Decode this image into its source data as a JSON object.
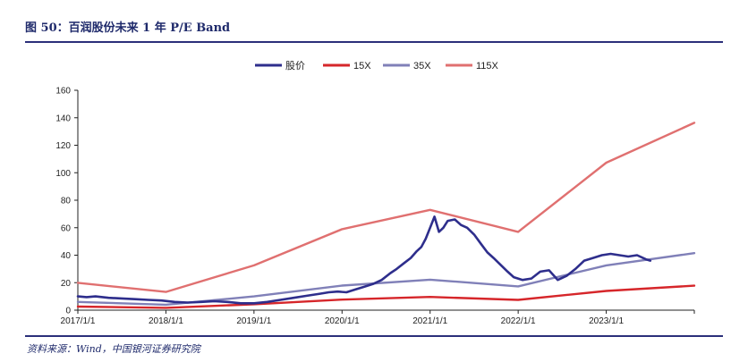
{
  "header": {
    "title": "图 50：百润股份未来 1 年 P/E Band"
  },
  "footer": {
    "source": "资料来源：Wind，中国银河证券研究院"
  },
  "chart_data": {
    "type": "line",
    "title": "图 50：百润股份未来 1 年 P/E Band",
    "xlabel": "",
    "ylabel": "",
    "ylim": [
      0,
      160
    ],
    "yticks": [
      0,
      20,
      40,
      60,
      80,
      100,
      120,
      140,
      160
    ],
    "xlim": [
      2017.0,
      2024.0
    ],
    "xtick_positions": [
      2017.0,
      2018.0,
      2019.0,
      2020.0,
      2021.0,
      2022.0,
      2023.0
    ],
    "xtick_labels": [
      "2017/1/1",
      "2018/1/1",
      "2019/1/1",
      "2020/1/1",
      "2021/1/1",
      "2022/1/1",
      "2023/1/1"
    ],
    "legend_position": "top-center",
    "series": [
      {
        "name": "股价",
        "color": "#2e2e8c",
        "x": [
          2017.0,
          2017.1,
          2017.2,
          2017.35,
          2017.5,
          2017.65,
          2017.8,
          2017.95,
          2018.1,
          2018.25,
          2018.4,
          2018.55,
          2018.7,
          2018.85,
          2019.0,
          2019.15,
          2019.3,
          2019.45,
          2019.6,
          2019.75,
          2019.85,
          2019.95,
          2020.05,
          2020.15,
          2020.25,
          2020.35,
          2020.45,
          2020.55,
          2020.62,
          2020.7,
          2020.78,
          2020.85,
          2020.9,
          2020.95,
          2021.0,
          2021.05,
          2021.1,
          2021.15,
          2021.2,
          2021.28,
          2021.35,
          2021.42,
          2021.5,
          2021.58,
          2021.65,
          2021.72,
          2021.8,
          2021.88,
          2021.95,
          2022.05,
          2022.15,
          2022.25,
          2022.35,
          2022.45,
          2022.55,
          2022.65,
          2022.75,
          2022.85,
          2022.95,
          2023.05,
          2023.15,
          2023.25,
          2023.35,
          2023.45,
          2023.5
        ],
        "values": [
          10,
          9.5,
          10,
          9,
          8.5,
          8,
          7.5,
          7,
          6,
          5.5,
          6,
          6.5,
          6,
          5,
          5,
          6,
          7.5,
          9,
          10.5,
          12,
          13,
          13.5,
          13,
          15,
          17,
          19,
          22,
          27,
          30,
          34,
          38,
          43,
          46,
          52,
          60,
          68,
          57,
          60,
          65,
          66,
          62,
          60,
          55,
          48,
          42,
          38,
          33,
          28,
          24,
          22,
          23,
          28,
          29,
          22,
          25,
          30,
          36,
          38,
          40,
          41,
          40,
          39,
          40,
          37,
          36
        ]
      },
      {
        "name": "15X",
        "color": "#d6262a",
        "x": [
          2017.0,
          2018.0,
          2019.0,
          2020.0,
          2021.0,
          2022.0,
          2023.0,
          2024.0
        ],
        "values": [
          2.6,
          1.7,
          4.3,
          7.7,
          9.6,
          7.5,
          14.0,
          17.8
        ]
      },
      {
        "name": "35X",
        "color": "#8080b8",
        "x": [
          2017.0,
          2018.0,
          2019.0,
          2020.0,
          2021.0,
          2022.0,
          2023.0,
          2024.0
        ],
        "values": [
          6,
          4,
          10,
          17.9,
          22.2,
          17.3,
          32.6,
          41.5
        ]
      },
      {
        "name": "115X",
        "color": "#e07070",
        "x": [
          2017.0,
          2018.0,
          2019.0,
          2020.0,
          2021.0,
          2022.0,
          2023.0,
          2024.0
        ],
        "values": [
          19.9,
          13.3,
          32.6,
          58.9,
          73,
          57,
          107.3,
          136.3
        ]
      }
    ]
  }
}
